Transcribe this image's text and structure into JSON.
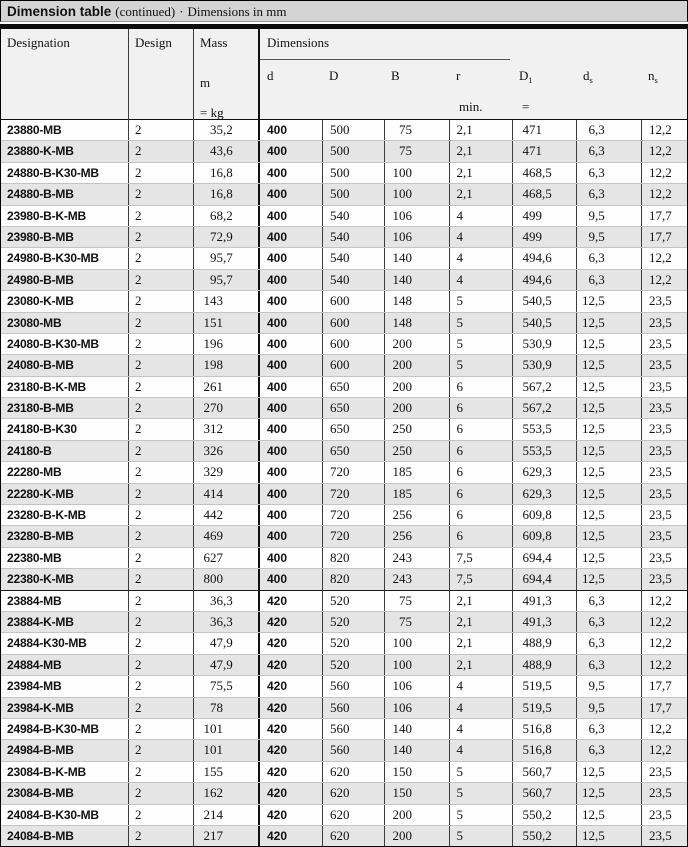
{
  "title": {
    "main": "Dimension table",
    "continued": "(continued)",
    "sep": "·",
    "note": "Dimensions in mm"
  },
  "table": {
    "headers": {
      "designation": "Designation",
      "design": "Design",
      "mass": "Mass",
      "mass_symbol": "m",
      "mass_unit": "= kg",
      "dimensions": "Dimensions",
      "r_min": "min.",
      "d1_approx": "="
    },
    "dim_cols": [
      {
        "base": "d",
        "sub": ""
      },
      {
        "base": "D",
        "sub": ""
      },
      {
        "base": "B",
        "sub": ""
      },
      {
        "base": "r",
        "sub": ""
      },
      {
        "base": "D",
        "sub": "1"
      },
      {
        "base": "d",
        "sub": "s"
      },
      {
        "base": "n",
        "sub": "s"
      }
    ],
    "rows": [
      {
        "designation": "23880-MB",
        "design": "2",
        "mass": "35,2",
        "d": "400",
        "D": "500",
        "B": "75",
        "r": "2,1",
        "D1": "471",
        "ds": "6,3",
        "ns": "12,2"
      },
      {
        "designation": "23880-K-MB",
        "design": "2",
        "mass": "43,6",
        "d": "400",
        "D": "500",
        "B": "75",
        "r": "2,1",
        "D1": "471",
        "ds": "6,3",
        "ns": "12,2"
      },
      {
        "designation": "24880-B-K30-MB",
        "design": "2",
        "mass": "16,8",
        "d": "400",
        "D": "500",
        "B": "100",
        "r": "2,1",
        "D1": "468,5",
        "ds": "6,3",
        "ns": "12,2"
      },
      {
        "designation": "24880-B-MB",
        "design": "2",
        "mass": "16,8",
        "d": "400",
        "D": "500",
        "B": "100",
        "r": "2,1",
        "D1": "468,5",
        "ds": "6,3",
        "ns": "12,2"
      },
      {
        "designation": "23980-B-K-MB",
        "design": "2",
        "mass": "68,2",
        "d": "400",
        "D": "540",
        "B": "106",
        "r": "4",
        "D1": "499",
        "ds": "9,5",
        "ns": "17,7"
      },
      {
        "designation": "23980-B-MB",
        "design": "2",
        "mass": "72,9",
        "d": "400",
        "D": "540",
        "B": "106",
        "r": "4",
        "D1": "499",
        "ds": "9,5",
        "ns": "17,7"
      },
      {
        "designation": "24980-B-K30-MB",
        "design": "2",
        "mass": "95,7",
        "d": "400",
        "D": "540",
        "B": "140",
        "r": "4",
        "D1": "494,6",
        "ds": "6,3",
        "ns": "12,2"
      },
      {
        "designation": "24980-B-MB",
        "design": "2",
        "mass": "95,7",
        "d": "400",
        "D": "540",
        "B": "140",
        "r": "4",
        "D1": "494,6",
        "ds": "6,3",
        "ns": "12,2"
      },
      {
        "designation": "23080-K-MB",
        "design": "2",
        "mass": "143",
        "d": "400",
        "D": "600",
        "B": "148",
        "r": "5",
        "D1": "540,5",
        "ds": "12,5",
        "ns": "23,5"
      },
      {
        "designation": "23080-MB",
        "design": "2",
        "mass": "151",
        "d": "400",
        "D": "600",
        "B": "148",
        "r": "5",
        "D1": "540,5",
        "ds": "12,5",
        "ns": "23,5"
      },
      {
        "designation": "24080-B-K30-MB",
        "design": "2",
        "mass": "196",
        "d": "400",
        "D": "600",
        "B": "200",
        "r": "5",
        "D1": "530,9",
        "ds": "12,5",
        "ns": "23,5"
      },
      {
        "designation": "24080-B-MB",
        "design": "2",
        "mass": "198",
        "d": "400",
        "D": "600",
        "B": "200",
        "r": "5",
        "D1": "530,9",
        "ds": "12,5",
        "ns": "23,5"
      },
      {
        "designation": "23180-B-K-MB",
        "design": "2",
        "mass": "261",
        "d": "400",
        "D": "650",
        "B": "200",
        "r": "6",
        "D1": "567,2",
        "ds": "12,5",
        "ns": "23,5"
      },
      {
        "designation": "23180-B-MB",
        "design": "2",
        "mass": "270",
        "d": "400",
        "D": "650",
        "B": "200",
        "r": "6",
        "D1": "567,2",
        "ds": "12,5",
        "ns": "23,5"
      },
      {
        "designation": "24180-B-K30",
        "design": "2",
        "mass": "312",
        "d": "400",
        "D": "650",
        "B": "250",
        "r": "6",
        "D1": "553,5",
        "ds": "12,5",
        "ns": "23,5"
      },
      {
        "designation": "24180-B",
        "design": "2",
        "mass": "326",
        "d": "400",
        "D": "650",
        "B": "250",
        "r": "6",
        "D1": "553,5",
        "ds": "12,5",
        "ns": "23,5"
      },
      {
        "designation": "22280-MB",
        "design": "2",
        "mass": "329",
        "d": "400",
        "D": "720",
        "B": "185",
        "r": "6",
        "D1": "629,3",
        "ds": "12,5",
        "ns": "23,5"
      },
      {
        "designation": "22280-K-MB",
        "design": "2",
        "mass": "414",
        "d": "400",
        "D": "720",
        "B": "185",
        "r": "6",
        "D1": "629,3",
        "ds": "12,5",
        "ns": "23,5"
      },
      {
        "designation": "23280-B-K-MB",
        "design": "2",
        "mass": "442",
        "d": "400",
        "D": "720",
        "B": "256",
        "r": "6",
        "D1": "609,8",
        "ds": "12,5",
        "ns": "23,5"
      },
      {
        "designation": "23280-B-MB",
        "design": "2",
        "mass": "469",
        "d": "400",
        "D": "720",
        "B": "256",
        "r": "6",
        "D1": "609,8",
        "ds": "12,5",
        "ns": "23,5"
      },
      {
        "designation": "22380-MB",
        "design": "2",
        "mass": "627",
        "d": "400",
        "D": "820",
        "B": "243",
        "r": "7,5",
        "D1": "694,4",
        "ds": "12,5",
        "ns": "23,5"
      },
      {
        "designation": "22380-K-MB",
        "design": "2",
        "mass": "800",
        "d": "400",
        "D": "820",
        "B": "243",
        "r": "7,5",
        "D1": "694,4",
        "ds": "12,5",
        "ns": "23,5"
      },
      {
        "designation": "23884-MB",
        "design": "2",
        "mass": "36,3",
        "d": "420",
        "D": "520",
        "B": "75",
        "r": "2,1",
        "D1": "491,3",
        "ds": "6,3",
        "ns": "12,2"
      },
      {
        "designation": "23884-K-MB",
        "design": "2",
        "mass": "36,3",
        "d": "420",
        "D": "520",
        "B": "75",
        "r": "2,1",
        "D1": "491,3",
        "ds": "6,3",
        "ns": "12,2"
      },
      {
        "designation": "24884-K30-MB",
        "design": "2",
        "mass": "47,9",
        "d": "420",
        "D": "520",
        "B": "100",
        "r": "2,1",
        "D1": "488,9",
        "ds": "6,3",
        "ns": "12,2"
      },
      {
        "designation": "24884-MB",
        "design": "2",
        "mass": "47,9",
        "d": "420",
        "D": "520",
        "B": "100",
        "r": "2,1",
        "D1": "488,9",
        "ds": "6,3",
        "ns": "12,2"
      },
      {
        "designation": "23984-MB",
        "design": "2",
        "mass": "75,5",
        "d": "420",
        "D": "560",
        "B": "106",
        "r": "4",
        "D1": "519,5",
        "ds": "9,5",
        "ns": "17,7"
      },
      {
        "designation": "23984-K-MB",
        "design": "2",
        "mass": "78",
        "d": "420",
        "D": "560",
        "B": "106",
        "r": "4",
        "D1": "519,5",
        "ds": "9,5",
        "ns": "17,7"
      },
      {
        "designation": "24984-B-K30-MB",
        "design": "2",
        "mass": "101",
        "d": "420",
        "D": "560",
        "B": "140",
        "r": "4",
        "D1": "516,8",
        "ds": "6,3",
        "ns": "12,2"
      },
      {
        "designation": "24984-B-MB",
        "design": "2",
        "mass": "101",
        "d": "420",
        "D": "560",
        "B": "140",
        "r": "4",
        "D1": "516,8",
        "ds": "6,3",
        "ns": "12,2"
      },
      {
        "designation": "23084-B-K-MB",
        "design": "2",
        "mass": "155",
        "d": "420",
        "D": "620",
        "B": "150",
        "r": "5",
        "D1": "560,7",
        "ds": "12,5",
        "ns": "23,5"
      },
      {
        "designation": "23084-B-MB",
        "design": "2",
        "mass": "162",
        "d": "420",
        "D": "620",
        "B": "150",
        "r": "5",
        "D1": "560,7",
        "ds": "12,5",
        "ns": "23,5"
      },
      {
        "designation": "24084-B-K30-MB",
        "design": "2",
        "mass": "214",
        "d": "420",
        "D": "620",
        "B": "200",
        "r": "5",
        "D1": "550,2",
        "ds": "12,5",
        "ns": "23,5"
      },
      {
        "designation": "24084-B-MB",
        "design": "2",
        "mass": "217",
        "d": "420",
        "D": "620",
        "B": "200",
        "r": "5",
        "D1": "550,2",
        "ds": "12,5",
        "ns": "23,5"
      }
    ]
  }
}
